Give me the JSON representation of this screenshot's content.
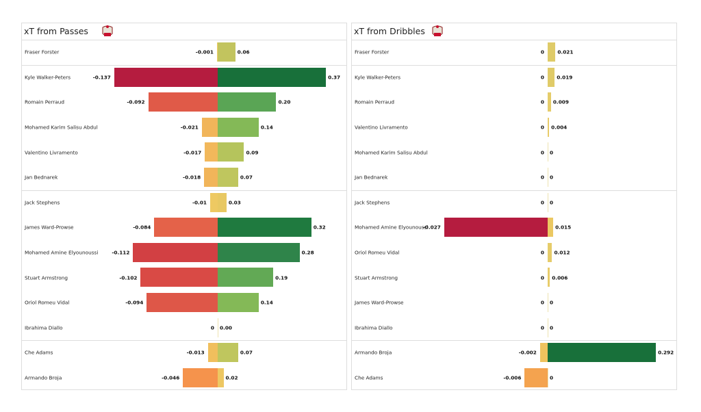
{
  "chart_data": [
    {
      "type": "bar",
      "title": "xT from Passes",
      "logo": "Southampton FC crest",
      "groups_end_after": [
        0,
        5,
        11
      ],
      "rows": [
        {
          "player": "Fraser Forster",
          "neg": -0.001,
          "pos": 0.06,
          "neg_label": "-0.001",
          "pos_label": "0.06",
          "neg_color": "#f0cc66",
          "pos_color": "#c2c45e"
        },
        {
          "player": "Kyle Walker-Peters",
          "neg": -0.137,
          "pos": 0.37,
          "neg_label": "-0.137",
          "pos_label": "0.37",
          "neg_color": "#b51c3f",
          "pos_color": "#18703a"
        },
        {
          "player": "Romain Perraud",
          "neg": -0.092,
          "pos": 0.2,
          "neg_label": "-0.092",
          "pos_label": "0.20",
          "neg_color": "#e05a48",
          "pos_color": "#5aa555"
        },
        {
          "player": "Mohamed Karim Salisu Abdul",
          "neg": -0.021,
          "pos": 0.14,
          "neg_label": "-0.021",
          "pos_label": "0.14",
          "neg_color": "#f1b55a",
          "pos_color": "#84b957"
        },
        {
          "player": "Valentino Livramento",
          "neg": -0.017,
          "pos": 0.09,
          "neg_label": "-0.017",
          "pos_label": "0.09",
          "neg_color": "#f2b85b",
          "pos_color": "#b5c45c"
        },
        {
          "player": "Jan Bednarek",
          "neg": -0.018,
          "pos": 0.07,
          "neg_label": "-0.018",
          "pos_label": "0.07",
          "neg_color": "#f1b55a",
          "pos_color": "#bfc65e"
        },
        {
          "player": "Jack Stephens",
          "neg": -0.01,
          "pos": 0.03,
          "neg_label": "-0.01",
          "pos_label": "0.03",
          "neg_color": "#eec962",
          "pos_color": "#e8c862"
        },
        {
          "player": "James  Ward-Prowse",
          "neg": -0.084,
          "pos": 0.32,
          "neg_label": "-0.084",
          "pos_label": "0.32",
          "neg_color": "#e46249",
          "pos_color": "#1f7a3f"
        },
        {
          "player": "Mohamed Amine Elyounoussi",
          "neg": -0.112,
          "pos": 0.28,
          "neg_label": "-0.112",
          "pos_label": "0.28",
          "neg_color": "#d24043",
          "pos_color": "#2f844a"
        },
        {
          "player": "Stuart Armstrong",
          "neg": -0.102,
          "pos": 0.19,
          "neg_label": "-0.102",
          "pos_label": "0.19",
          "neg_color": "#d94a45",
          "pos_color": "#62a955"
        },
        {
          "player": "Oriol Romeu Vidal",
          "neg": -0.094,
          "pos": 0.14,
          "neg_label": "-0.094",
          "pos_label": "0.14",
          "neg_color": "#de5748",
          "pos_color": "#84b957"
        },
        {
          "player": "Ibrahima Diallo",
          "neg": 0,
          "pos": 0.0,
          "neg_label": "0",
          "pos_label": "0.00",
          "neg_color": "#eccc66",
          "pos_color": "#eccc66"
        },
        {
          "player": "Che Adams",
          "neg": -0.013,
          "pos": 0.07,
          "neg_label": "-0.013",
          "pos_label": "0.07",
          "neg_color": "#f0bf5d",
          "pos_color": "#bfc65e"
        },
        {
          "player": "Armando Broja",
          "neg": -0.046,
          "pos": 0.02,
          "neg_label": "-0.046",
          "pos_label": "0.02",
          "neg_color": "#f5934c",
          "pos_color": "#edc762"
        }
      ]
    },
    {
      "type": "bar",
      "title": "xT from Dribbles",
      "logo": "Southampton FC crest",
      "groups_end_after": [
        0,
        5,
        11
      ],
      "rows": [
        {
          "player": "Fraser Forster",
          "neg": 0,
          "pos": 0.021,
          "neg_label": "0",
          "pos_label": "0.021",
          "neg_color": "#e5cc6a",
          "pos_color": "#dfcb68"
        },
        {
          "player": "Kyle Walker-Peters",
          "neg": 0,
          "pos": 0.019,
          "neg_label": "0",
          "pos_label": "0.019",
          "neg_color": "#e5cc6a",
          "pos_color": "#e0cb68"
        },
        {
          "player": "Romain Perraud",
          "neg": 0,
          "pos": 0.009,
          "neg_label": "0",
          "pos_label": "0.009",
          "neg_color": "#e5cc6a",
          "pos_color": "#e5cc6a"
        },
        {
          "player": "Valentino Livramento",
          "neg": 0,
          "pos": 0.004,
          "neg_label": "0",
          "pos_label": "0.004",
          "neg_color": "#e5cc6a",
          "pos_color": "#e8cc6a"
        },
        {
          "player": "Mohamed Karim Salisu Abdul",
          "neg": 0,
          "pos": 0,
          "neg_label": "0",
          "pos_label": "0",
          "neg_color": "#e5cc6a",
          "pos_color": "#e5cc6a"
        },
        {
          "player": "Jan Bednarek",
          "neg": 0,
          "pos": 0,
          "neg_label": "0",
          "pos_label": "0",
          "neg_color": "#e5cc6a",
          "pos_color": "#e5cc6a"
        },
        {
          "player": "Jack Stephens",
          "neg": 0,
          "pos": 0,
          "neg_label": "0",
          "pos_label": "0",
          "neg_color": "#e5cc6a",
          "pos_color": "#e5cc6a"
        },
        {
          "player": "Mohamed Amine Elyounoussi",
          "neg": -0.027,
          "pos": 0.015,
          "neg_label": "-0.027",
          "pos_label": "0.015",
          "neg_color": "#b51c3f",
          "pos_color": "#ebc862"
        },
        {
          "player": "Oriol Romeu Vidal",
          "neg": 0,
          "pos": 0.012,
          "neg_label": "0",
          "pos_label": "0.012",
          "neg_color": "#e5cc6a",
          "pos_color": "#e6cc6a"
        },
        {
          "player": "Stuart Armstrong",
          "neg": 0,
          "pos": 0.006,
          "neg_label": "0",
          "pos_label": "0.006",
          "neg_color": "#e5cc6a",
          "pos_color": "#e8cc6a"
        },
        {
          "player": "James  Ward-Prowse",
          "neg": 0,
          "pos": 0,
          "neg_label": "0",
          "pos_label": "0",
          "neg_color": "#e5cc6a",
          "pos_color": "#e5cc6a"
        },
        {
          "player": "Ibrahima Diallo",
          "neg": 0,
          "pos": 0,
          "neg_label": "0",
          "pos_label": "0",
          "neg_color": "#e5cc6a",
          "pos_color": "#e5cc6a"
        },
        {
          "player": "Armando Broja",
          "neg": -0.002,
          "pos": 0.292,
          "neg_label": "-0.002",
          "pos_label": "0.292",
          "neg_color": "#efc35e",
          "pos_color": "#18703a"
        },
        {
          "player": "Che Adams",
          "neg": -0.006,
          "pos": 0,
          "neg_label": "-0.006",
          "pos_label": "0",
          "neg_color": "#f4a34f",
          "pos_color": "#e5cc6a"
        }
      ]
    }
  ]
}
